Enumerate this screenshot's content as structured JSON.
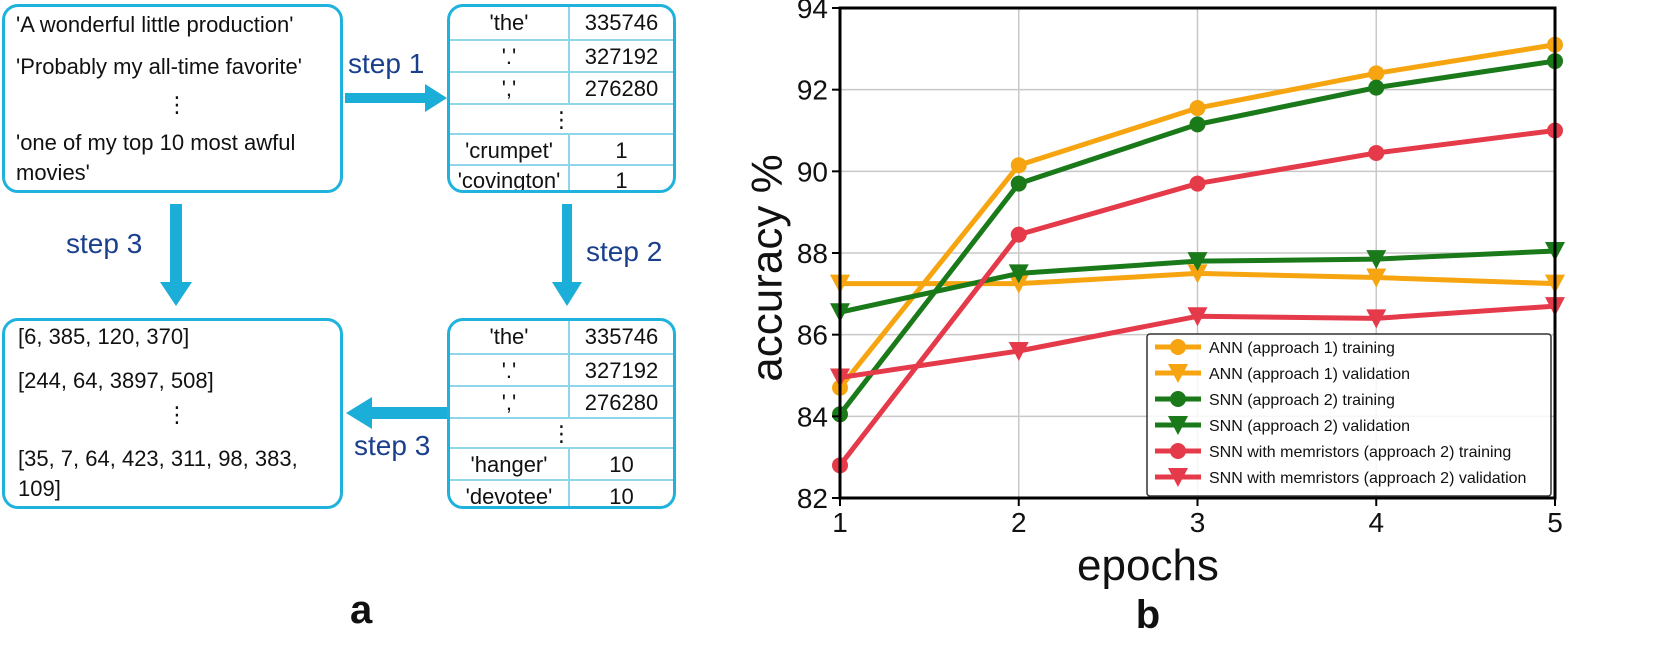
{
  "panel_a": {
    "label": "a",
    "sentences": [
      "'A wonderful little production'",
      "'Probably my all-time favorite'",
      "⋮",
      "'one of my top 10 most awful",
      "movies'"
    ],
    "sequences": [
      "[6, 385, 120, 370]",
      "[244, 64, 3897, 508]",
      "⋮",
      "[35, 7, 64, 423, 311, 98, 383,",
      "109]"
    ],
    "vocab_counts": {
      "rows": [
        {
          "word": "'the'",
          "count": "335746"
        },
        {
          "word": "'.'",
          "count": "327192"
        },
        {
          "word": "','",
          "count": "276280"
        },
        {
          "word": "⋮",
          "count": ""
        },
        {
          "word": "'crumpet'",
          "count": "1"
        },
        {
          "word": "'covington'",
          "count": "1"
        }
      ]
    },
    "vocab_index": {
      "rows": [
        {
          "word": "'the'",
          "count": "335746"
        },
        {
          "word": "'.'",
          "count": "327192"
        },
        {
          "word": "','",
          "count": "276280"
        },
        {
          "word": "⋮",
          "count": ""
        },
        {
          "word": "'hanger'",
          "count": "10"
        },
        {
          "word": "'devotee'",
          "count": "10"
        }
      ]
    },
    "steps": {
      "step1": "step 1",
      "step2": "step 2",
      "step3a": "step 3",
      "step3b": "step 3"
    },
    "colors": {
      "box": "#1fb2dc",
      "arrow": "#1aaed8",
      "step_text": "#1a3f8c"
    }
  },
  "panel_b": {
    "label": "b"
  },
  "chart_data": {
    "type": "line",
    "xlabel": "epochs",
    "ylabel": "accuracy %",
    "xlim": [
      1,
      5
    ],
    "ylim": [
      82,
      94
    ],
    "xticks": [
      1,
      2,
      3,
      4,
      5
    ],
    "yticks": [
      82,
      84,
      86,
      88,
      90,
      92,
      94
    ],
    "grid": true,
    "legend_position": "bottom-right",
    "x": [
      1,
      2,
      3,
      4,
      5
    ],
    "series": [
      {
        "name": "ANN (approach 1) training",
        "color": "#f6a511",
        "marker": "circle",
        "values": [
          84.7,
          90.15,
          91.55,
          92.4,
          93.1
        ]
      },
      {
        "name": "ANN (approach 1) validation",
        "color": "#f6a511",
        "marker": "triangle-down",
        "values": [
          87.25,
          87.25,
          87.5,
          87.4,
          87.25
        ]
      },
      {
        "name": "SNN (approach 2) training",
        "color": "#1a7a1a",
        "marker": "circle",
        "values": [
          84.05,
          89.7,
          91.15,
          92.05,
          92.7
        ]
      },
      {
        "name": "SNN (approach 2) validation",
        "color": "#1a7a1a",
        "marker": "triangle-down",
        "values": [
          86.55,
          87.5,
          87.8,
          87.85,
          88.05
        ]
      },
      {
        "name": "SNN with memristors (approach 2) training",
        "color": "#e53a4a",
        "marker": "circle",
        "values": [
          82.8,
          88.45,
          89.7,
          90.45,
          91.0
        ]
      },
      {
        "name": "SNN with memristors (approach 2) validation",
        "color": "#e53a4a",
        "marker": "triangle-down",
        "values": [
          84.95,
          85.6,
          86.45,
          86.4,
          86.7
        ]
      }
    ]
  }
}
